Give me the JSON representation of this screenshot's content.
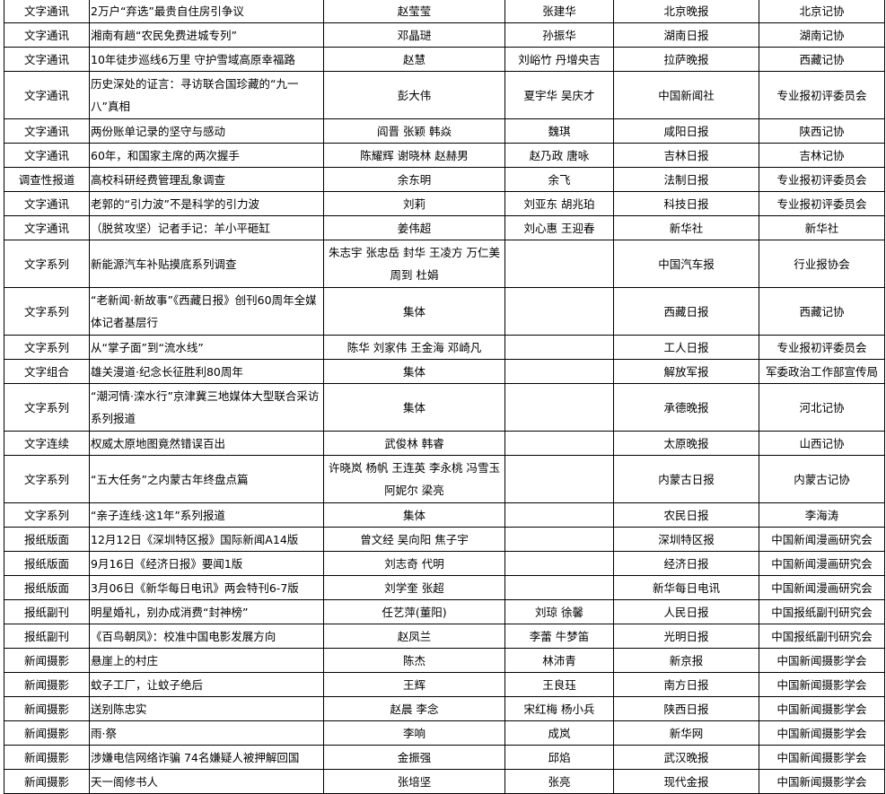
{
  "rows": [
    {
      "category": "文字通讯",
      "title": "2万户“弃选”最贵自住房引争议",
      "authors": "赵莹莹",
      "editors": "张建华",
      "publisher": "北京晚报",
      "recommender": "北京记协"
    },
    {
      "category": "文字通讯",
      "title": "湘南有趟“农民免费进城专列”",
      "authors": "邓晶琎",
      "editors": "孙振华",
      "publisher": "湖南日报",
      "recommender": "湖南记协"
    },
    {
      "category": "文字通讯",
      "title": "10年徒步巡线6万里 守护雪域高原幸福路",
      "authors": "赵慧",
      "editors": "刘峪竹 丹增央吉",
      "publisher": "拉萨晚报",
      "recommender": "西藏记协"
    },
    {
      "category": "文字通讯",
      "title": "历史深处的证言：寻访联合国珍藏的“九一八”真相",
      "authors": "彭大伟",
      "editors": "夏宇华 吴庆才",
      "publisher": "中国新闻社",
      "recommender": "专业报初评委员会"
    },
    {
      "category": "文字通讯",
      "title": "两份账单记录的坚守与感动",
      "authors": "阎晋 张颖 韩焱",
      "editors": "魏琪",
      "publisher": "咸阳日报",
      "recommender": "陕西记协"
    },
    {
      "category": "文字通讯",
      "title": "60年，和国家主席的两次握手",
      "authors": "陈耀辉 谢晓林 赵赫男",
      "editors": "赵乃政 唐咏",
      "publisher": "吉林日报",
      "recommender": "吉林记协"
    },
    {
      "category": "调查性报道",
      "title": "高校科研经费管理乱象调查",
      "authors": "余东明",
      "editors": "余飞",
      "publisher": "法制日报",
      "recommender": "专业报初评委员会"
    },
    {
      "category": "文字通讯",
      "title": "老郭的“引力波”不是科学的引力波",
      "authors": "刘莉",
      "editors": "刘亚东 胡兆珀",
      "publisher": "科技日报",
      "recommender": "专业报初评委员会"
    },
    {
      "category": "文字通讯",
      "title": "（脱贫攻坚）记者手记：羊小平砸缸",
      "authors": "姜伟超",
      "editors": "刘心惠 王迎春",
      "publisher": "新华社",
      "recommender": "新华社"
    },
    {
      "category": "文字系列",
      "title": "新能源汽车补贴摸底系列调查",
      "authors": "朱志宇 张忠岳 封华 王凌方 万仁美 周到 杜娟",
      "editors": "",
      "publisher": "中国汽车报",
      "recommender": "行业报协会"
    },
    {
      "category": "文字系列",
      "title": "“老新闻·新故事”《西藏日报》创刊60周年全媒体记者基层行",
      "authors": "集体",
      "editors": "",
      "publisher": "西藏日报",
      "recommender": "西藏记协"
    },
    {
      "category": "文字系列",
      "title": "从“掌子面”到“流水线”",
      "authors": "陈华 刘家伟 王金海 邓崎凡",
      "editors": "",
      "publisher": "工人日报",
      "recommender": "专业报初评委员会"
    },
    {
      "category": "文字组合",
      "title": "雄关漫道·纪念长征胜利80周年",
      "authors": "集体",
      "editors": "",
      "publisher": "解放军报",
      "recommender": "军委政治工作部宣传局"
    },
    {
      "category": "文字系列",
      "title": "“潮河情·滦水行”京津冀三地媒体大型联合采访系列报道",
      "authors": "集体",
      "editors": "",
      "publisher": "承德晚报",
      "recommender": "河北记协"
    },
    {
      "category": "文字连续",
      "title": "权威太原地图竟然错误百出",
      "authors": "武俊林 韩睿",
      "editors": "",
      "publisher": "太原晚报",
      "recommender": "山西记协"
    },
    {
      "category": "文字系列",
      "title": "“五大任务”之内蒙古年终盘点篇",
      "authors": "许晓岚 杨帆 王连英 李永桃 冯雪玉 阿妮尔 梁亮",
      "editors": "",
      "publisher": "内蒙古日报",
      "recommender": "内蒙古记协"
    },
    {
      "category": "文字系列",
      "title": "“亲子连线·这1年”系列报道",
      "authors": "集体",
      "editors": "",
      "publisher": "农民日报",
      "recommender": "李海涛"
    },
    {
      "category": "报纸版面",
      "title": "12月12日《深圳特区报》国际新闻A14版",
      "authors": "曾文经 吴向阳 焦子宇",
      "editors": "",
      "publisher": "深圳特区报",
      "recommender": "中国新闻漫画研究会"
    },
    {
      "category": "报纸版面",
      "title": "9月16日《经济日报》要闻1版",
      "authors": "刘志奇 代明",
      "editors": "",
      "publisher": "经济日报",
      "recommender": "中国新闻漫画研究会"
    },
    {
      "category": "报纸版面",
      "title": "3月06日《新华每日电讯》两会特刊6-7版",
      "authors": "刘学奎 张超",
      "editors": "",
      "publisher": "新华每日电讯",
      "recommender": "中国新闻漫画研究会"
    },
    {
      "category": "报纸副刊",
      "title": "明星婚礼，别办成消费“封神榜”",
      "authors": "任艺萍(董阳)",
      "editors": "刘琼 徐馨",
      "publisher": "人民日报",
      "recommender": "中国报纸副刊研究会"
    },
    {
      "category": "报纸副刊",
      "title": "《百鸟朝凤》：校准中国电影发展方向",
      "authors": "赵凤兰",
      "editors": "李蕾 牛梦笛",
      "publisher": "光明日报",
      "recommender": "中国报纸副刊研究会"
    },
    {
      "category": "新闻摄影",
      "title": "悬崖上的村庄",
      "authors": "陈杰",
      "editors": "林沛青",
      "publisher": "新京报",
      "recommender": "中国新闻摄影学会"
    },
    {
      "category": "新闻摄影",
      "title": "蚊子工厂，让蚊子绝后",
      "authors": "王辉",
      "editors": "王良珏",
      "publisher": "南方日报",
      "recommender": "中国新闻摄影学会"
    },
    {
      "category": "新闻摄影",
      "title": "送别陈忠实",
      "authors": "赵晨 李念",
      "editors": "宋红梅 杨小兵",
      "publisher": "陕西日报",
      "recommender": "中国新闻摄影学会"
    },
    {
      "category": "新闻摄影",
      "title": "雨·祭",
      "authors": "李响",
      "editors": "成岚",
      "publisher": "新华网",
      "recommender": "中国新闻摄影学会"
    },
    {
      "category": "新闻摄影",
      "title": "涉嫌电信网络诈骗 74名嫌疑人被押解回国",
      "authors": "金振强",
      "editors": "邱焰",
      "publisher": "武汉晚报",
      "recommender": "中国新闻摄影学会"
    },
    {
      "category": "新闻摄影",
      "title": "天一阁修书人",
      "authors": "张培坚",
      "editors": "张亮",
      "publisher": "现代金报",
      "recommender": "中国新闻摄影学会"
    }
  ]
}
